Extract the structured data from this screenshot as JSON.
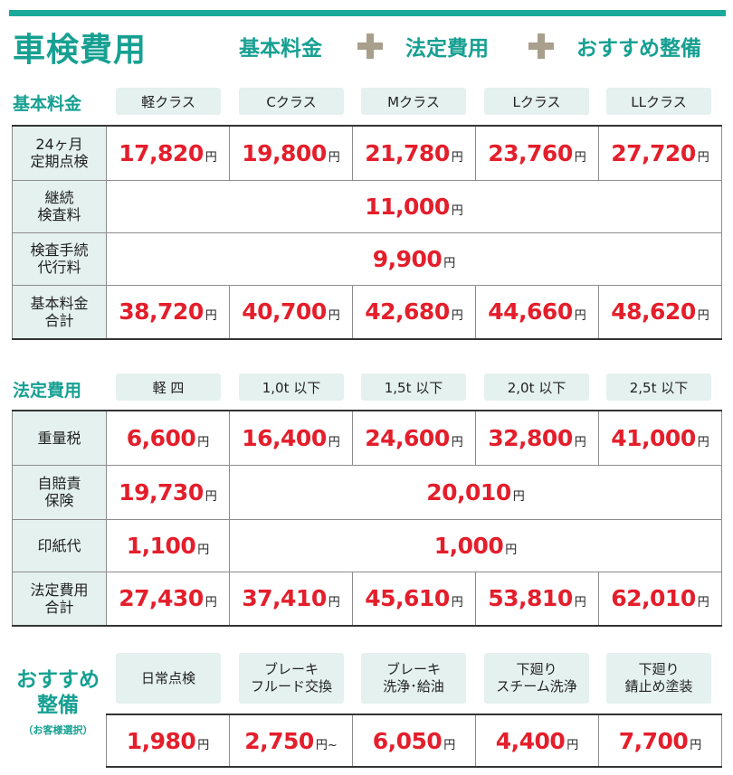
{
  "header": {
    "title": "車検費用",
    "formula": {
      "item1": "基本料金",
      "item2": "法定費用",
      "item3": "おすすめ整備"
    }
  },
  "basic": {
    "label": "基本料金",
    "classes": [
      "軽クラス",
      "Cクラス",
      "Mクラス",
      "Lクラス",
      "LLクラス"
    ],
    "rows": [
      {
        "label": "24ヶ月\n定期点検",
        "values": [
          "17,820",
          "19,800",
          "21,780",
          "23,760",
          "27,720"
        ]
      },
      {
        "label": "継続\n検査料",
        "span_value": "11,000"
      },
      {
        "label": "検査手続\n代行料",
        "span_value": "9,900"
      },
      {
        "label": "基本料金\n合計",
        "values": [
          "38,720",
          "40,700",
          "42,680",
          "44,660",
          "48,620"
        ]
      }
    ]
  },
  "legal": {
    "label": "法定費用",
    "classes": [
      "軽 四",
      "1,0t 以下",
      "1,5t 以下",
      "2,0t 以下",
      "2,5t 以下"
    ],
    "rows": [
      {
        "label": "重量税",
        "values": [
          "6,600",
          "16,400",
          "24,600",
          "32,800",
          "41,000"
        ]
      },
      {
        "label": "自賠責\n保険",
        "first": "19,730",
        "rest": "20,010"
      },
      {
        "label": "印紙代",
        "first": "1,100",
        "rest": "1,000"
      },
      {
        "label": "法定費用\n合計",
        "values": [
          "27,430",
          "37,410",
          "45,610",
          "53,810",
          "62,010"
        ]
      }
    ]
  },
  "recommended": {
    "label": "おすすめ\n整備",
    "note": "（お客様選択）",
    "items": [
      "日常点検",
      "ブレーキ\nフルード交換",
      "ブレーキ\n洗浄･給油",
      "下廻り\nスチーム洗浄",
      "下廻り\n錆止め塗装"
    ],
    "values": [
      "1,980",
      "2,750",
      "6,050",
      "4,400",
      "7,700"
    ],
    "suffix": "円~"
  },
  "unit": "円",
  "colors": {
    "accent": "#17a092",
    "price": "#e41e2b",
    "chip": "#e4f1ee",
    "plus": "#a89f8c"
  }
}
